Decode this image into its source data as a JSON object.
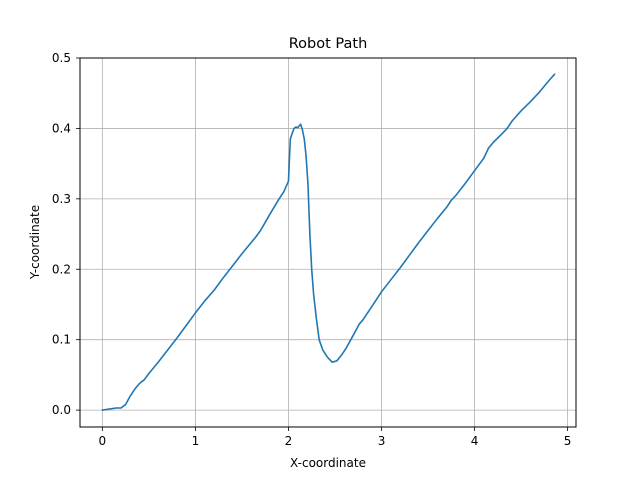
{
  "chart_data": {
    "type": "line",
    "title": "Robot Path",
    "xlabel": "X-coordinate",
    "ylabel": "Y-coordinate",
    "xlim": [
      -0.24,
      5.09
    ],
    "ylim": [
      -0.024,
      0.5
    ],
    "xticks": [
      0,
      1,
      2,
      3,
      4,
      5
    ],
    "xtick_labels": [
      "0",
      "1",
      "2",
      "3",
      "4",
      "5"
    ],
    "yticks": [
      0.0,
      0.1,
      0.2,
      0.3,
      0.4,
      0.5
    ],
    "ytick_labels": [
      "0.0",
      "0.1",
      "0.2",
      "0.3",
      "0.4",
      "0.5"
    ],
    "grid": true,
    "line_color": "#1f77b4",
    "series": [
      {
        "x": [
          0.0,
          0.05,
          0.1,
          0.15,
          0.2,
          0.25,
          0.3,
          0.35,
          0.4,
          0.45,
          0.5,
          0.6,
          0.7,
          0.8,
          0.9,
          1.0,
          1.1,
          1.2,
          1.3,
          1.4,
          1.5,
          1.6,
          1.65,
          1.7,
          1.8,
          1.9,
          1.95,
          2.0,
          2.02,
          2.04,
          2.06,
          2.08,
          2.1,
          2.13,
          2.15,
          2.17,
          2.19,
          2.21,
          2.23,
          2.25,
          2.27,
          2.3,
          2.33,
          2.37,
          2.42,
          2.47,
          2.52,
          2.57,
          2.62,
          2.67,
          2.72,
          2.76,
          2.8,
          2.85,
          2.9,
          3.0,
          3.1,
          3.2,
          3.3,
          3.4,
          3.5,
          3.6,
          3.7,
          3.75,
          3.8,
          3.9,
          4.0,
          4.1,
          4.15,
          4.2,
          4.3,
          4.35,
          4.4,
          4.5,
          4.6,
          4.7,
          4.8,
          4.86
        ],
        "y": [
          0.0,
          0.001,
          0.002,
          0.003,
          0.003,
          0.008,
          0.02,
          0.03,
          0.038,
          0.043,
          0.052,
          0.068,
          0.085,
          0.102,
          0.12,
          0.138,
          0.155,
          0.17,
          0.188,
          0.205,
          0.222,
          0.238,
          0.246,
          0.255,
          0.278,
          0.3,
          0.31,
          0.325,
          0.385,
          0.393,
          0.4,
          0.402,
          0.401,
          0.406,
          0.398,
          0.385,
          0.36,
          0.32,
          0.25,
          0.2,
          0.165,
          0.13,
          0.1,
          0.085,
          0.075,
          0.068,
          0.07,
          0.078,
          0.088,
          0.1,
          0.112,
          0.122,
          0.128,
          0.138,
          0.148,
          0.168,
          0.185,
          0.202,
          0.22,
          0.238,
          0.255,
          0.272,
          0.288,
          0.298,
          0.305,
          0.322,
          0.34,
          0.358,
          0.372,
          0.38,
          0.393,
          0.4,
          0.41,
          0.425,
          0.438,
          0.452,
          0.468,
          0.477
        ]
      }
    ]
  }
}
